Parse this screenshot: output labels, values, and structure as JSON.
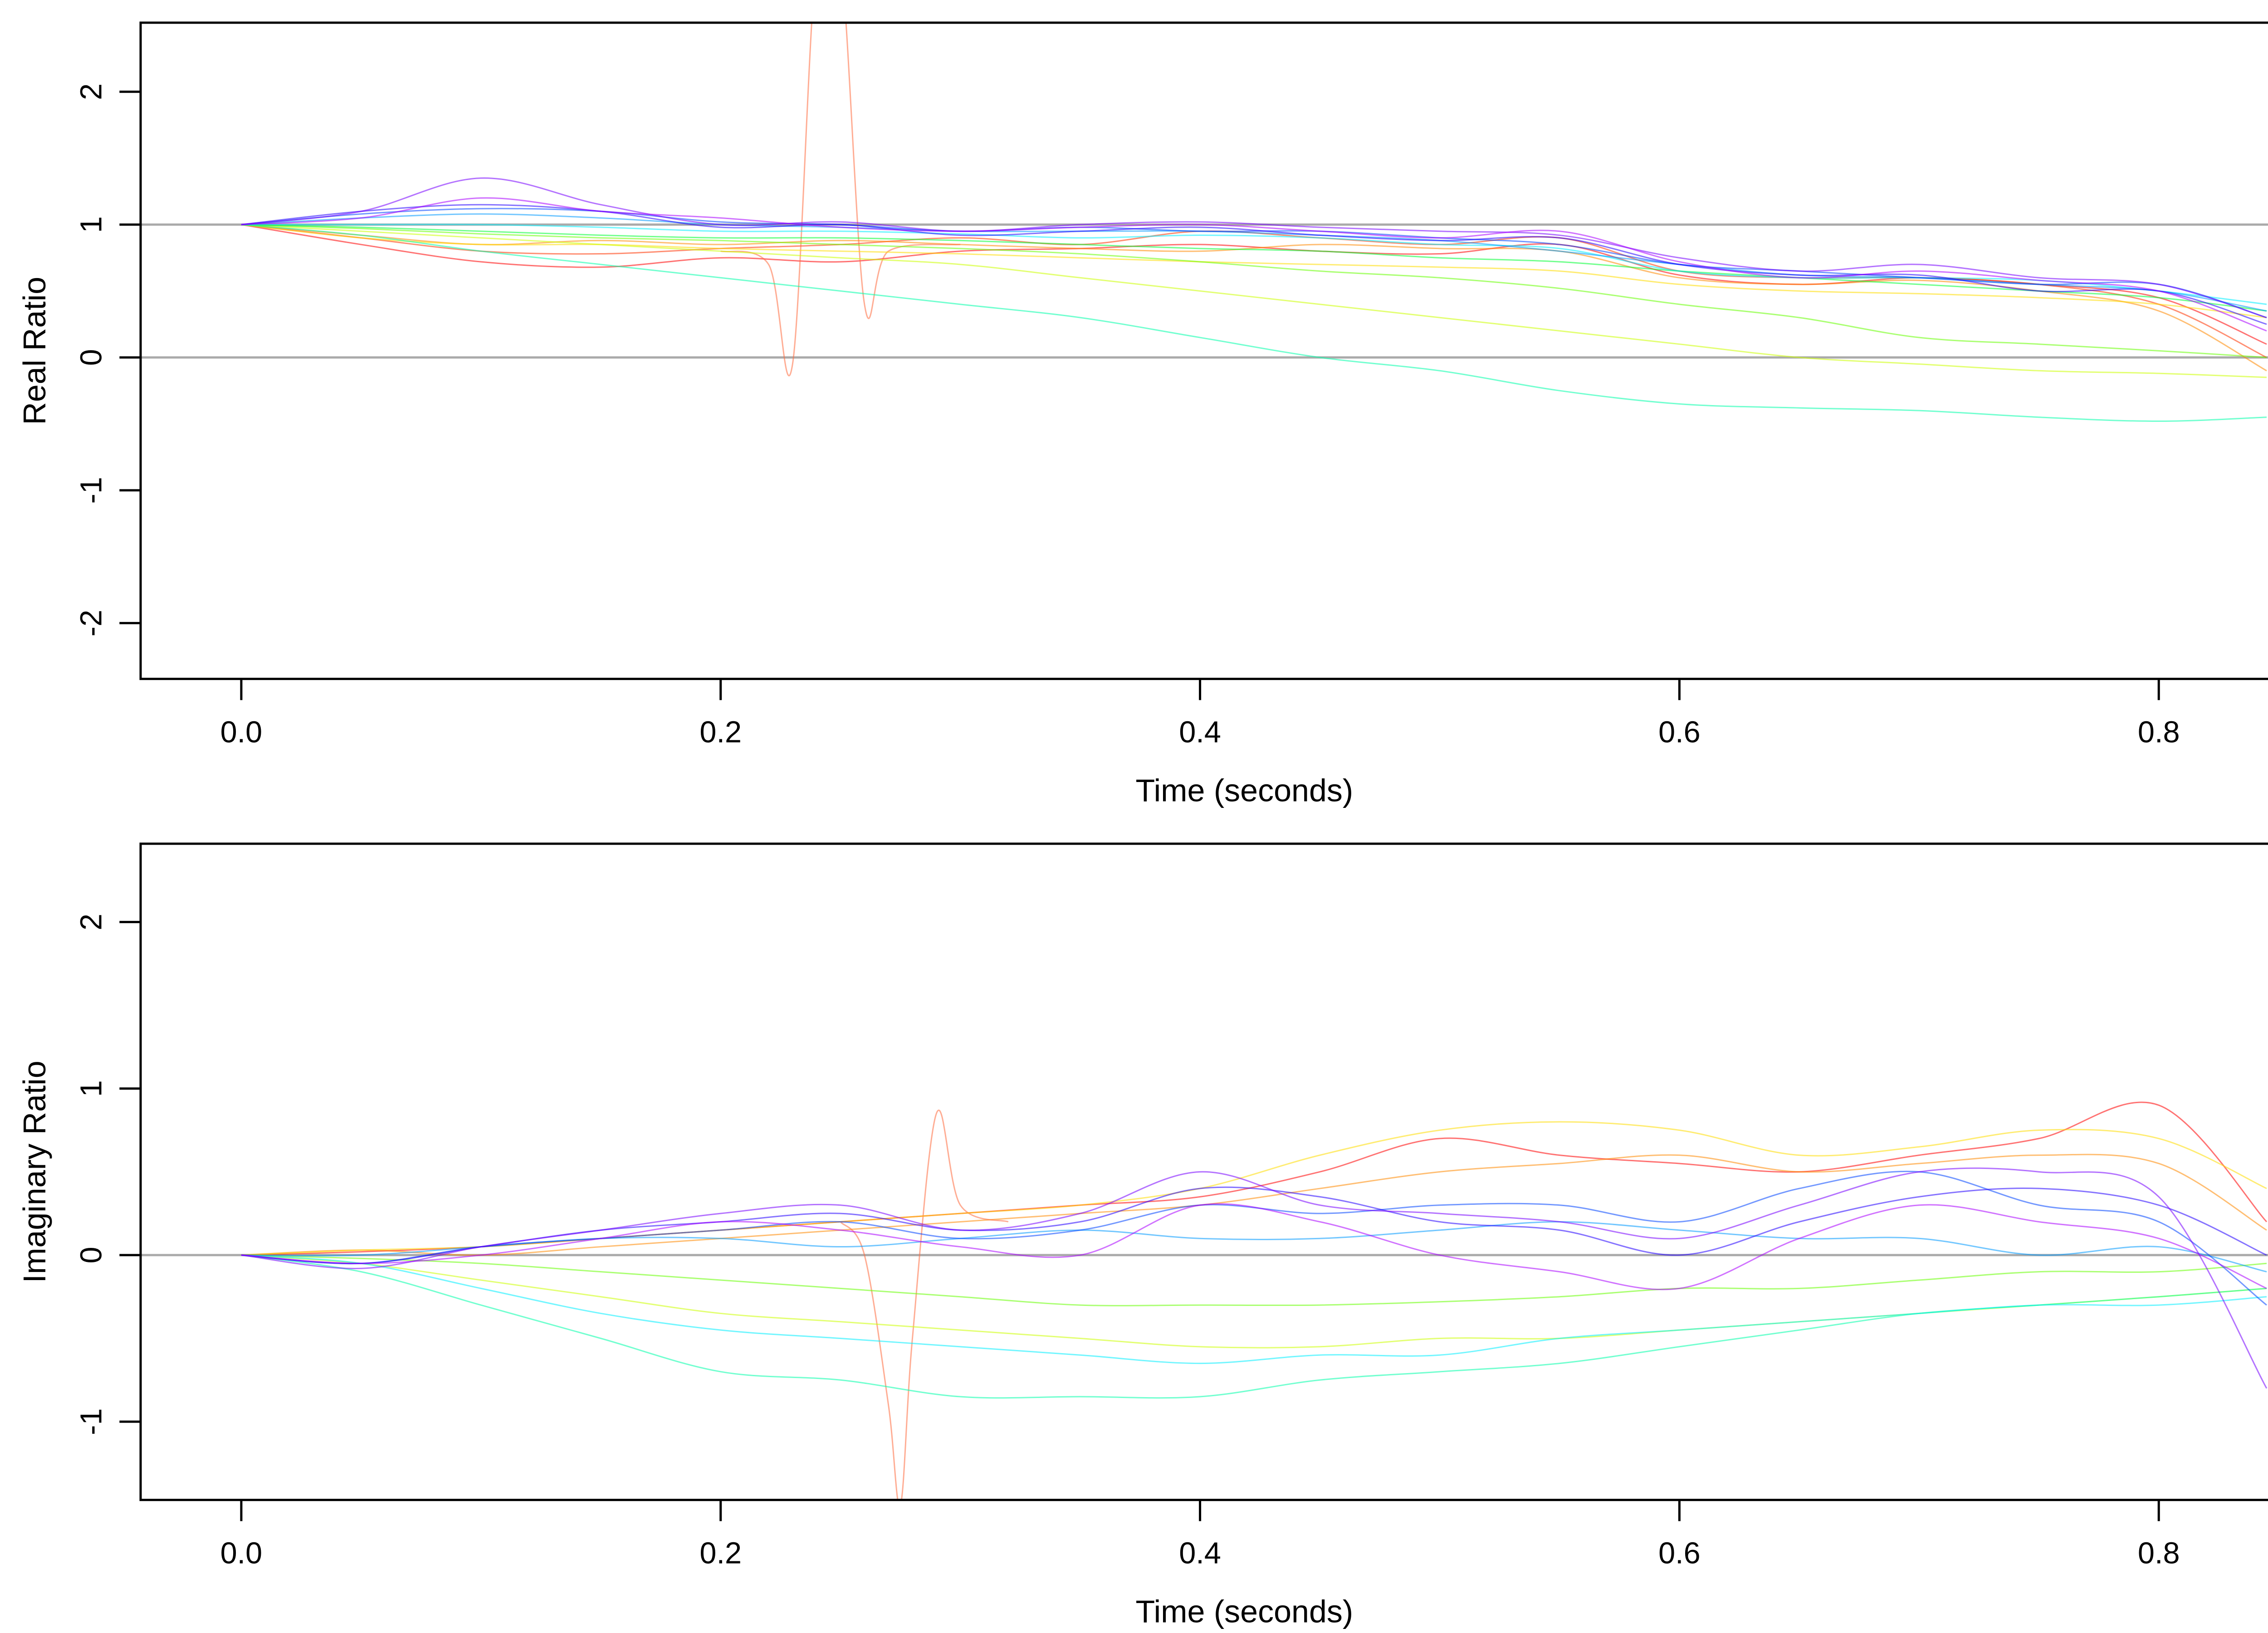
{
  "chart_data": [
    {
      "type": "line",
      "xlabel": "Time (seconds)",
      "ylabel": "Real Ratio",
      "xlim": [
        -0.042,
        0.879
      ],
      "ylim": [
        -2.42,
        2.52
      ],
      "xticks": [
        "0.0",
        "0.2",
        "0.4",
        "0.6",
        "0.8"
      ],
      "xtick_values": [
        0,
        0.2,
        0.4,
        0.6,
        0.8
      ],
      "yticks": [
        "-2",
        "-1",
        "0",
        "1",
        "2"
      ],
      "ytick_values": [
        -2,
        -1,
        0,
        1,
        2
      ],
      "reference_lines": [
        1,
        0
      ],
      "reference_color": "#aaaaaa",
      "grid": false,
      "x": [
        0,
        0.05,
        0.1,
        0.15,
        0.2,
        0.25,
        0.3,
        0.35,
        0.4,
        0.45,
        0.5,
        0.55,
        0.6,
        0.65,
        0.7,
        0.75,
        0.8,
        0.845
      ],
      "series": [
        {
          "color": "#ff0000",
          "values": [
            1,
            0.85,
            0.72,
            0.68,
            0.75,
            0.72,
            0.8,
            0.82,
            0.85,
            0.8,
            0.78,
            0.85,
            0.62,
            0.55,
            0.6,
            0.55,
            0.45,
            0.1
          ]
        },
        {
          "color": "#ff3300",
          "values": [
            1,
            0.9,
            0.8,
            0.78,
            0.82,
            0.85,
            0.9,
            0.85,
            0.95,
            0.9,
            0.85,
            0.9,
            0.65,
            0.6,
            0.6,
            0.55,
            0.4,
            0.0
          ]
        },
        {
          "color": "#ff8800",
          "values": [
            1,
            0.92,
            0.85,
            0.88,
            0.85,
            0.88,
            0.85,
            0.82,
            0.8,
            0.85,
            0.82,
            0.8,
            0.6,
            0.55,
            0.58,
            0.5,
            0.35,
            -0.1
          ]
        },
        {
          "color": "#ff6a3d",
          "x": [
            0.2,
            0.22,
            0.23,
            0.24,
            0.25,
            0.26,
            0.27,
            0.3
          ],
          "values": [
            0.8,
            0.7,
            -0.05,
            3,
            3,
            0.4,
            0.8,
            0.85
          ]
        },
        {
          "color": "#ffdd00",
          "values": [
            1,
            0.9,
            0.85,
            0.85,
            0.82,
            0.8,
            0.78,
            0.75,
            0.72,
            0.7,
            0.68,
            0.65,
            0.55,
            0.5,
            0.48,
            0.45,
            0.4,
            0.3
          ]
        },
        {
          "color": "#ccff00",
          "values": [
            1,
            0.95,
            0.9,
            0.85,
            0.8,
            0.75,
            0.7,
            0.6,
            0.5,
            0.4,
            0.3,
            0.2,
            0.1,
            0.0,
            -0.05,
            -0.1,
            -0.12,
            -0.15
          ]
        },
        {
          "color": "#66ff00",
          "values": [
            1,
            0.97,
            0.93,
            0.9,
            0.88,
            0.85,
            0.82,
            0.78,
            0.72,
            0.65,
            0.6,
            0.52,
            0.4,
            0.3,
            0.15,
            0.1,
            0.05,
            0.0
          ]
        },
        {
          "color": "#00ff33",
          "values": [
            1,
            0.98,
            0.95,
            0.92,
            0.9,
            0.9,
            0.88,
            0.85,
            0.82,
            0.8,
            0.75,
            0.72,
            0.65,
            0.6,
            0.55,
            0.5,
            0.45,
            0.35
          ]
        },
        {
          "color": "#00ffaa",
          "values": [
            1,
            0.92,
            0.8,
            0.7,
            0.6,
            0.5,
            0.4,
            0.3,
            0.15,
            0.0,
            -0.1,
            -0.25,
            -0.35,
            -0.38,
            -0.4,
            -0.45,
            -0.48,
            -0.45
          ]
        },
        {
          "color": "#00eeff",
          "values": [
            1,
            1,
            1,
            0.98,
            0.95,
            0.95,
            0.93,
            0.9,
            0.92,
            0.9,
            0.85,
            0.82,
            0.65,
            0.6,
            0.6,
            0.58,
            0.5,
            0.4
          ]
        },
        {
          "color": "#0099ff",
          "values": [
            1,
            1.05,
            1.08,
            1.05,
            1,
            0.98,
            0.95,
            0.95,
            0.95,
            0.92,
            0.88,
            0.8,
            0.7,
            0.62,
            0.6,
            0.55,
            0.5,
            0.35
          ]
        },
        {
          "color": "#0044ff",
          "values": [
            1,
            1.08,
            1.12,
            1.1,
            1.02,
            1.0,
            0.95,
            0.98,
            0.95,
            0.95,
            0.9,
            0.85,
            0.7,
            0.65,
            0.6,
            0.55,
            0.55,
            0.3
          ]
        },
        {
          "color": "#2200ff",
          "values": [
            1,
            1.1,
            1.15,
            1.1,
            0.98,
            1.0,
            0.92,
            0.95,
            0.98,
            0.92,
            0.88,
            0.9,
            0.7,
            0.62,
            0.62,
            0.5,
            0.5,
            0.25
          ]
        },
        {
          "color": "#7700ff",
          "values": [
            1,
            1.1,
            1.35,
            1.15,
            1.0,
            1.02,
            0.95,
            1.0,
            1.02,
            0.98,
            0.95,
            0.92,
            0.75,
            0.65,
            0.7,
            0.6,
            0.55,
            0.3
          ]
        },
        {
          "color": "#aa00ff",
          "values": [
            1,
            1.05,
            1.2,
            1.1,
            1.05,
            0.98,
            0.95,
            0.98,
            1.0,
            0.95,
            0.9,
            0.95,
            0.72,
            0.6,
            0.65,
            0.58,
            0.5,
            0.2
          ]
        }
      ]
    },
    {
      "type": "line",
      "xlabel": "Time (seconds)",
      "ylabel": "Imaginary Ratio",
      "xlim": [
        -0.042,
        0.879
      ],
      "ylim": [
        -1.47,
        2.47
      ],
      "xticks": [
        "0.0",
        "0.2",
        "0.4",
        "0.6",
        "0.8"
      ],
      "xtick_values": [
        0,
        0.2,
        0.4,
        0.6,
        0.8
      ],
      "yticks": [
        "-1",
        "0",
        "1",
        "2"
      ],
      "ytick_values": [
        -1,
        0,
        1,
        2
      ],
      "reference_lines": [
        0
      ],
      "reference_color": "#aaaaaa",
      "grid": false,
      "x": [
        0,
        0.05,
        0.1,
        0.15,
        0.2,
        0.25,
        0.3,
        0.35,
        0.4,
        0.45,
        0.5,
        0.55,
        0.6,
        0.65,
        0.7,
        0.75,
        0.8,
        0.845
      ],
      "series": [
        {
          "color": "#ff0000",
          "values": [
            0,
            0.02,
            0.05,
            0.1,
            0.15,
            0.2,
            0.25,
            0.3,
            0.35,
            0.5,
            0.7,
            0.6,
            0.55,
            0.5,
            0.6,
            0.7,
            0.9,
            0.2
          ]
        },
        {
          "color": "#ff8800",
          "values": [
            0,
            0.03,
            0.0,
            0.05,
            0.1,
            0.15,
            0.2,
            0.25,
            0.3,
            0.4,
            0.5,
            0.55,
            0.6,
            0.5,
            0.55,
            0.6,
            0.55,
            0.15
          ]
        },
        {
          "color": "#ff6a3d",
          "x": [
            0.25,
            0.26,
            0.27,
            0.275,
            0.28,
            0.29,
            0.3,
            0.32
          ],
          "values": [
            0.2,
            0,
            -0.9,
            -1.5,
            -0.5,
            0.85,
            0.3,
            0.2
          ]
        },
        {
          "color": "#ffdd00",
          "values": [
            0,
            0.03,
            0.05,
            0.1,
            0.15,
            0.2,
            0.25,
            0.3,
            0.4,
            0.6,
            0.75,
            0.8,
            0.75,
            0.6,
            0.65,
            0.75,
            0.7,
            0.4
          ]
        },
        {
          "color": "#ccff00",
          "values": [
            0,
            -0.05,
            -0.15,
            -0.25,
            -0.35,
            -0.4,
            -0.45,
            -0.5,
            -0.55,
            -0.55,
            -0.5,
            -0.5,
            -0.45,
            -0.4,
            -0.35,
            -0.3,
            -0.25,
            -0.2
          ]
        },
        {
          "color": "#66ff00",
          "values": [
            0,
            -0.02,
            -0.05,
            -0.1,
            -0.15,
            -0.2,
            -0.25,
            -0.3,
            -0.3,
            -0.3,
            -0.28,
            -0.25,
            -0.2,
            -0.2,
            -0.15,
            -0.1,
            -0.1,
            -0.05
          ]
        },
        {
          "color": "#00ffaa",
          "values": [
            0,
            -0.1,
            -0.3,
            -0.5,
            -0.7,
            -0.75,
            -0.85,
            -0.85,
            -0.85,
            -0.75,
            -0.7,
            -0.65,
            -0.55,
            -0.45,
            -0.35,
            -0.3,
            -0.25,
            -0.2
          ]
        },
        {
          "color": "#00eeff",
          "values": [
            0,
            -0.05,
            -0.2,
            -0.35,
            -0.45,
            -0.5,
            -0.55,
            -0.6,
            -0.65,
            -0.6,
            -0.6,
            -0.5,
            -0.45,
            -0.4,
            -0.35,
            -0.3,
            -0.3,
            -0.25
          ]
        },
        {
          "color": "#0099ff",
          "values": [
            0,
            0.0,
            0.05,
            0.1,
            0.1,
            0.05,
            0.1,
            0.15,
            0.1,
            0.1,
            0.15,
            0.2,
            0.15,
            0.1,
            0.1,
            0.0,
            0.05,
            -0.1
          ]
        },
        {
          "color": "#0044ff",
          "values": [
            0,
            -0.05,
            0.05,
            0.1,
            0.15,
            0.2,
            0.1,
            0.15,
            0.3,
            0.25,
            0.3,
            0.3,
            0.2,
            0.4,
            0.5,
            0.3,
            0.2,
            -0.3
          ]
        },
        {
          "color": "#2200ff",
          "values": [
            0,
            -0.05,
            0.05,
            0.15,
            0.2,
            0.25,
            0.15,
            0.2,
            0.4,
            0.35,
            0.2,
            0.15,
            0.0,
            0.2,
            0.35,
            0.4,
            0.3,
            0.0
          ]
        },
        {
          "color": "#7700ff",
          "values": [
            0,
            -0.08,
            0.05,
            0.15,
            0.25,
            0.3,
            0.15,
            0.25,
            0.5,
            0.3,
            0.25,
            0.2,
            0.1,
            0.3,
            0.5,
            0.5,
            0.35,
            -0.8
          ]
        },
        {
          "color": "#aa00ff",
          "values": [
            0,
            -0.05,
            0.0,
            0.1,
            0.2,
            0.15,
            0.05,
            0.0,
            0.3,
            0.2,
            0.0,
            -0.1,
            -0.2,
            0.1,
            0.3,
            0.2,
            0.1,
            -0.2
          ]
        }
      ]
    }
  ]
}
